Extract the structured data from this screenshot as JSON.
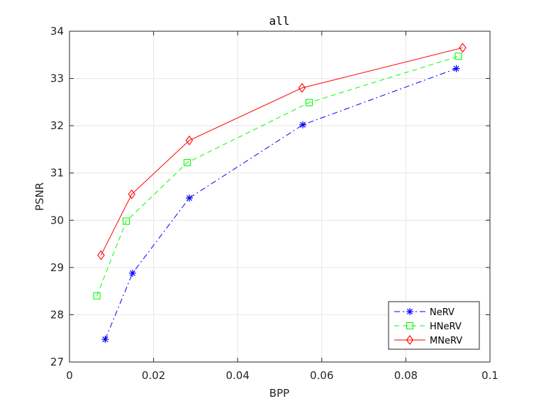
{
  "chart_data": {
    "type": "line",
    "title": "all",
    "xlabel": "BPP",
    "ylabel": "PSNR",
    "xlim": [
      0,
      0.1
    ],
    "ylim": [
      27,
      34
    ],
    "xticks": [
      0,
      0.02,
      0.04,
      0.06,
      0.08,
      0.1
    ],
    "xtick_labels": [
      "0",
      "0.02",
      "0.04",
      "0.06",
      "0.08",
      "0.1"
    ],
    "yticks": [
      27,
      28,
      29,
      30,
      31,
      32,
      33,
      34
    ],
    "ytick_labels": [
      "27",
      "28",
      "29",
      "30",
      "31",
      "32",
      "33",
      "34"
    ],
    "grid": true,
    "legend_position": "bottom-right",
    "series": [
      {
        "name": "NeRV",
        "color": "#0000ff",
        "line_style": "dash-dot",
        "marker": "asterisk",
        "x": [
          0.0085,
          0.015,
          0.0285,
          0.0555,
          0.092
        ],
        "y": [
          27.48,
          28.88,
          30.47,
          32.02,
          33.21
        ]
      },
      {
        "name": "HNeRV",
        "color": "#00ff00",
        "line_style": "dashed",
        "marker": "square",
        "x": [
          0.0065,
          0.0135,
          0.028,
          0.057,
          0.0925
        ],
        "y": [
          28.4,
          29.98,
          31.22,
          32.49,
          33.47
        ]
      },
      {
        "name": "MNeRV",
        "color": "#ff0000",
        "line_style": "solid",
        "marker": "diamond",
        "x": [
          0.0075,
          0.0148,
          0.0285,
          0.0553,
          0.0935
        ],
        "y": [
          29.26,
          30.55,
          31.69,
          32.8,
          33.65
        ]
      }
    ]
  }
}
